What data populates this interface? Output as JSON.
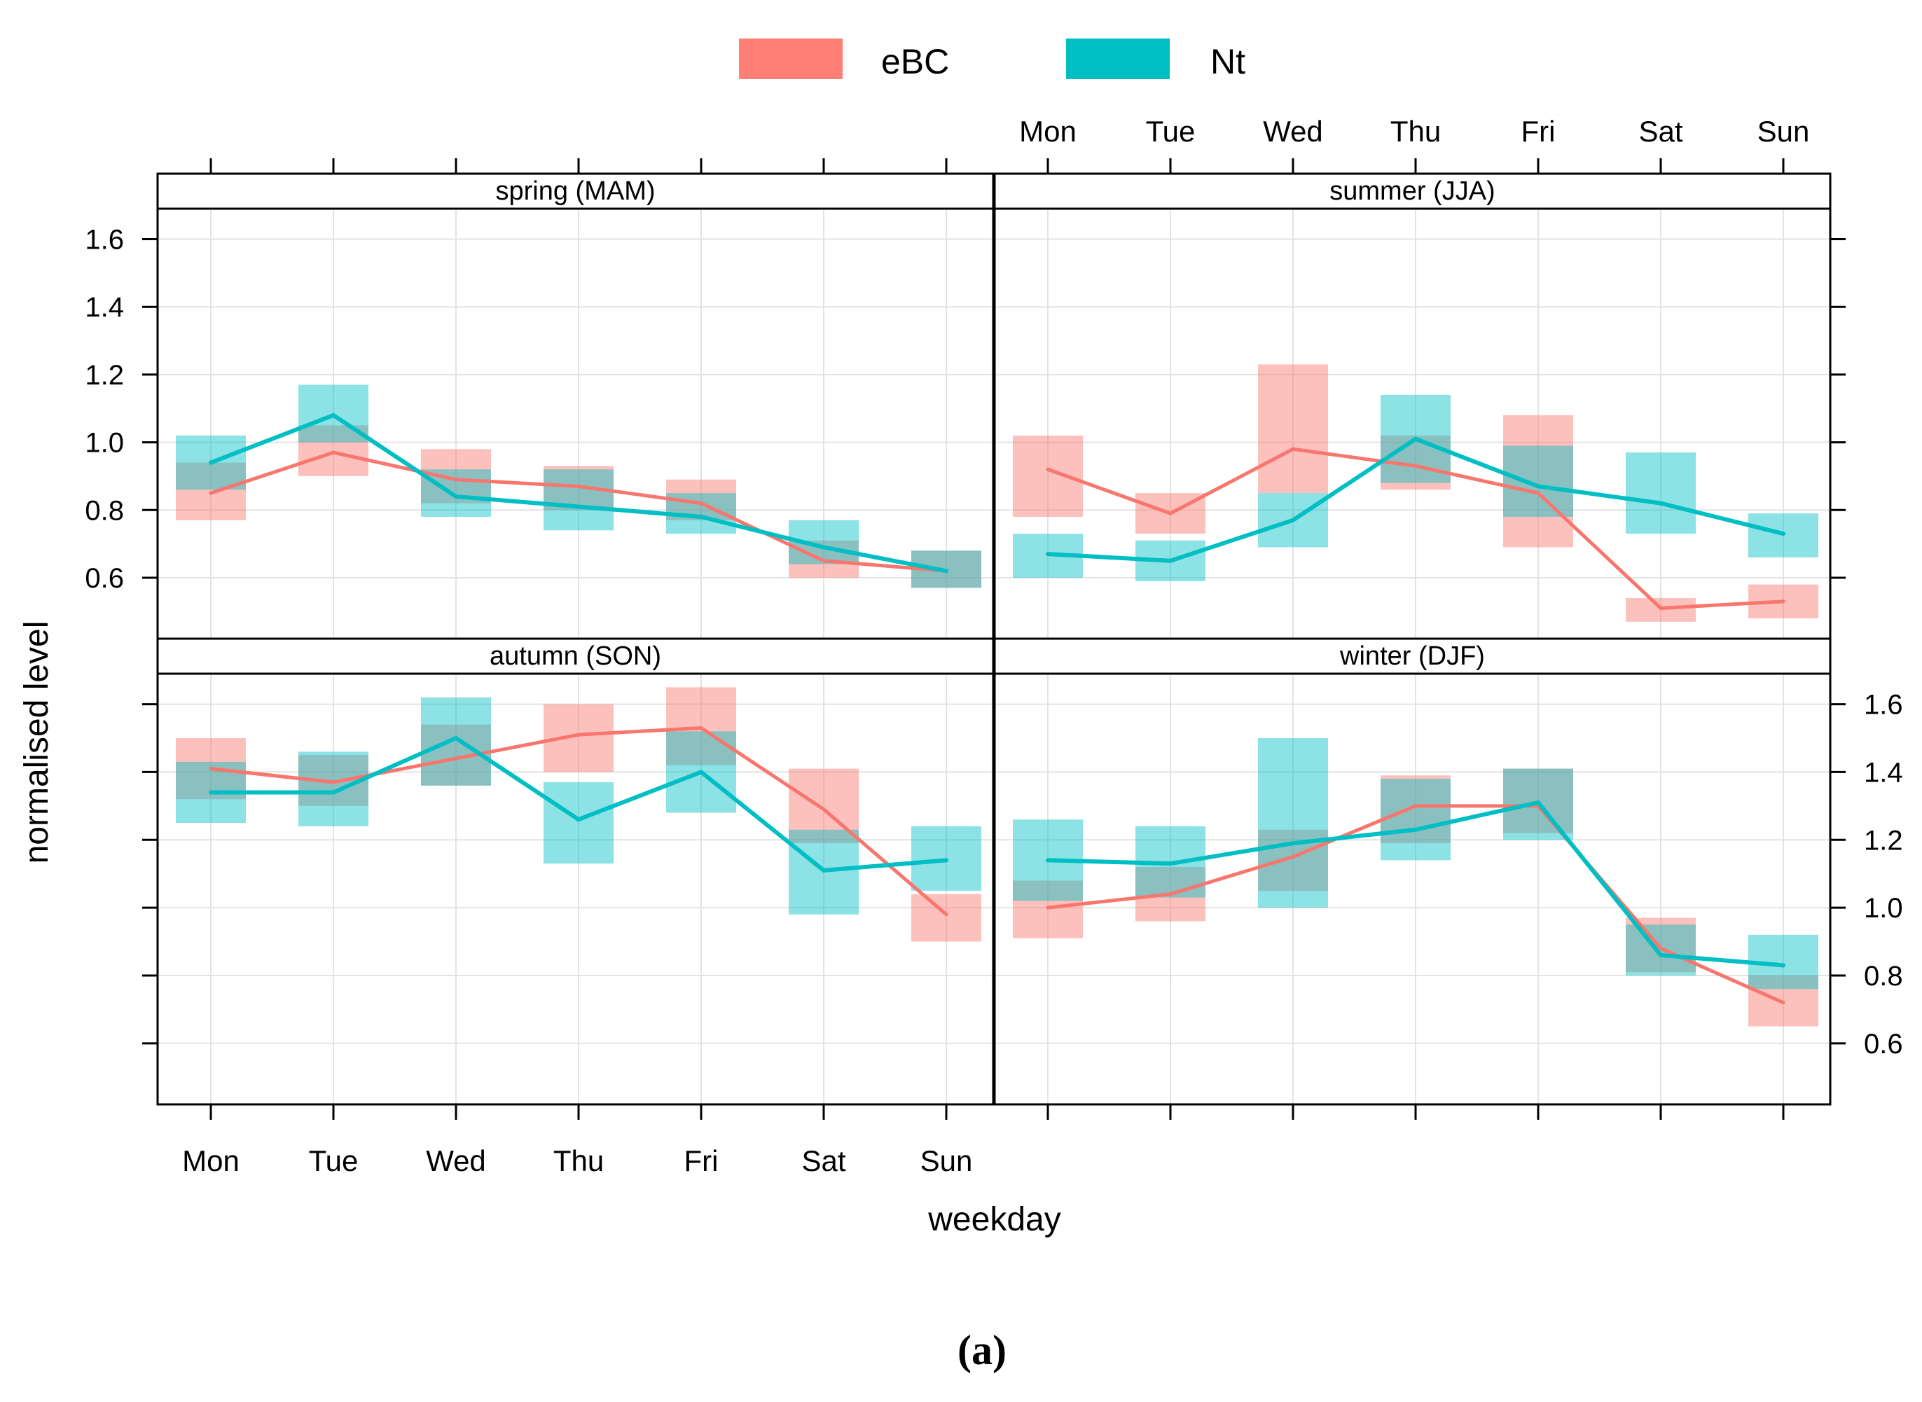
{
  "chart_data": {
    "type": "line",
    "subtype": "line-with-uncertainty-bands",
    "xlabel": "weekday",
    "ylabel": "normalised level",
    "caption": "(a)",
    "categories": [
      "Mon",
      "Tue",
      "Wed",
      "Thu",
      "Fri",
      "Sat",
      "Sun"
    ],
    "ylim": [
      0.42,
      1.69
    ],
    "yticks": [
      0.6,
      0.8,
      1.0,
      1.2,
      1.4,
      1.6
    ],
    "ytick_labels": [
      "0.6",
      "0.8",
      "1.0",
      "1.2",
      "1.4",
      "1.6"
    ],
    "grid": true,
    "legend": {
      "position": "top",
      "items": [
        {
          "name": "eBC",
          "color": "#F8766D"
        },
        {
          "name": "Nt",
          "color": "#00BFC4"
        }
      ]
    },
    "colors": {
      "eBC": "#F8766D",
      "Nt": "#00BFC4",
      "grid": "#e3e3e3",
      "frame": "#000000"
    },
    "panels": [
      {
        "title": "spring (MAM)",
        "series": [
          {
            "name": "eBC",
            "values": [
              0.85,
              0.97,
              0.89,
              0.87,
              0.82,
              0.65,
              0.62
            ],
            "lower": [
              0.77,
              0.9,
              0.82,
              0.8,
              0.77,
              0.6,
              0.57
            ],
            "upper": [
              0.94,
              1.05,
              0.98,
              0.93,
              0.89,
              0.71,
              0.68
            ]
          },
          {
            "name": "Nt",
            "values": [
              0.94,
              1.08,
              0.84,
              0.81,
              0.78,
              0.69,
              0.62
            ],
            "lower": [
              0.86,
              1.0,
              0.78,
              0.74,
              0.73,
              0.64,
              0.57
            ],
            "upper": [
              1.02,
              1.17,
              0.92,
              0.92,
              0.85,
              0.77,
              0.68
            ]
          }
        ]
      },
      {
        "title": "summer (JJA)",
        "series": [
          {
            "name": "eBC",
            "values": [
              0.92,
              0.79,
              0.98,
              0.93,
              0.85,
              0.51,
              0.53
            ],
            "lower": [
              0.78,
              0.73,
              0.85,
              0.86,
              0.69,
              0.47,
              0.48
            ],
            "upper": [
              1.02,
              0.85,
              1.23,
              1.02,
              1.08,
              0.54,
              0.58
            ]
          },
          {
            "name": "Nt",
            "values": [
              0.67,
              0.65,
              0.77,
              1.01,
              0.87,
              0.82,
              0.73
            ],
            "lower": [
              0.6,
              0.59,
              0.69,
              0.88,
              0.78,
              0.73,
              0.66
            ],
            "upper": [
              0.73,
              0.71,
              0.85,
              1.14,
              0.99,
              0.97,
              0.79
            ]
          }
        ]
      },
      {
        "title": "autumn (SON)",
        "series": [
          {
            "name": "eBC",
            "values": [
              1.41,
              1.37,
              1.44,
              1.51,
              1.53,
              1.29,
              0.98
            ],
            "lower": [
              1.32,
              1.3,
              1.36,
              1.4,
              1.42,
              1.19,
              0.9
            ],
            "upper": [
              1.5,
              1.45,
              1.54,
              1.6,
              1.65,
              1.41,
              1.04
            ]
          },
          {
            "name": "Nt",
            "values": [
              1.34,
              1.34,
              1.5,
              1.26,
              1.4,
              1.11,
              1.14
            ],
            "lower": [
              1.25,
              1.24,
              1.36,
              1.13,
              1.28,
              0.98,
              1.05
            ],
            "upper": [
              1.43,
              1.46,
              1.62,
              1.37,
              1.52,
              1.23,
              1.24
            ]
          }
        ]
      },
      {
        "title": "winter (DJF)",
        "series": [
          {
            "name": "eBC",
            "values": [
              1.0,
              1.04,
              1.15,
              1.3,
              1.3,
              0.88,
              0.72
            ],
            "lower": [
              0.91,
              0.96,
              1.05,
              1.19,
              1.22,
              0.81,
              0.65
            ],
            "upper": [
              1.08,
              1.12,
              1.23,
              1.39,
              1.41,
              0.97,
              0.8
            ]
          },
          {
            "name": "Nt",
            "values": [
              1.14,
              1.13,
              1.19,
              1.23,
              1.31,
              0.86,
              0.83
            ],
            "lower": [
              1.02,
              1.03,
              1.0,
              1.14,
              1.2,
              0.8,
              0.76
            ],
            "upper": [
              1.26,
              1.24,
              1.5,
              1.38,
              1.41,
              0.95,
              0.92
            ]
          }
        ]
      }
    ]
  }
}
